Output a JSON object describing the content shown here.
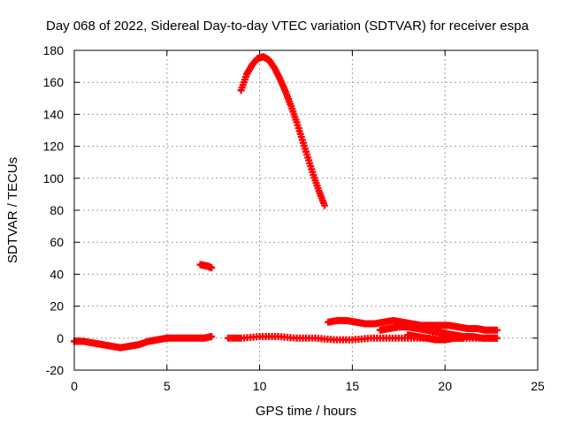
{
  "chart_data": {
    "type": "scatter",
    "title": "Day 068 of 2022, Sidereal Day-to-day VTEC variation (SDTVAR) for receiver espa",
    "xlabel": "GPS time / hours",
    "ylabel": "SDTVAR / TECUs",
    "xlim": [
      0,
      25
    ],
    "ylim": [
      -20,
      180
    ],
    "xticks": [
      0,
      5,
      10,
      15,
      20,
      25
    ],
    "yticks": [
      -20,
      0,
      20,
      40,
      60,
      80,
      100,
      120,
      140,
      160,
      180
    ],
    "grid": true,
    "marker": "plus",
    "color": "#ff0000",
    "series": [
      {
        "name": "arc-peak",
        "x": [
          9.0,
          9.3,
          9.6,
          9.9,
          10.2,
          10.5,
          10.8,
          11.1,
          11.4,
          11.7,
          12.0,
          12.3,
          12.6,
          12.9,
          13.2,
          13.5
        ],
        "y": [
          155,
          165,
          171,
          175,
          176,
          174,
          169,
          162,
          154,
          145,
          135,
          124,
          113,
          102,
          92,
          83
        ]
      },
      {
        "name": "arc-short",
        "x": [
          6.8,
          7.0,
          7.2,
          7.4
        ],
        "y": [
          46,
          45.5,
          45,
          44
        ]
      },
      {
        "name": "arc-baseline-1",
        "x": [
          0.0,
          0.5,
          1.0,
          1.5,
          2.0,
          2.5,
          3.0,
          3.5,
          4.0,
          4.5,
          5.0,
          5.5,
          6.0,
          6.5,
          7.0,
          7.4
        ],
        "y": [
          -2,
          -2,
          -3,
          -4,
          -5,
          -6,
          -5,
          -4,
          -2,
          -1,
          0,
          0,
          0,
          0,
          0,
          1
        ]
      },
      {
        "name": "arc-baseline-2",
        "x": [
          8.3,
          9.0,
          10.0,
          11.0,
          12.0,
          13.0,
          14.0,
          15.0,
          16.0,
          17.0,
          18.0,
          19.0,
          20.0,
          21.0,
          22.0,
          22.8
        ],
        "y": [
          0,
          0,
          1,
          1,
          0,
          0,
          -1,
          -1,
          0,
          0,
          0,
          0,
          0,
          0,
          0,
          0
        ]
      },
      {
        "name": "arc-upper",
        "x": [
          13.7,
          14.2,
          14.7,
          15.2,
          15.7,
          16.2,
          16.7,
          17.2,
          17.7,
          18.2,
          18.7,
          19.2,
          19.7,
          20.2,
          20.7,
          21.2,
          21.7,
          22.2,
          22.8
        ],
        "y": [
          10,
          11,
          11,
          10,
          9,
          9,
          10,
          11,
          10,
          9,
          8,
          8,
          8,
          8,
          7,
          6,
          6,
          5,
          5
        ]
      },
      {
        "name": "arc-mid",
        "x": [
          16.5,
          17.0,
          17.5,
          18.0,
          18.5,
          19.0,
          19.5,
          20.0,
          20.5,
          21.0,
          21.5,
          22.0,
          22.5,
          22.8
        ],
        "y": [
          5,
          6,
          7,
          7,
          6,
          5,
          4,
          3,
          2,
          1,
          1,
          0,
          0,
          0
        ]
      },
      {
        "name": "arc-lower",
        "x": [
          18.0,
          18.5,
          19.0,
          19.5,
          20.0,
          20.5,
          21.0
        ],
        "y": [
          2,
          1,
          0,
          -1,
          -1,
          0,
          0
        ]
      }
    ]
  }
}
